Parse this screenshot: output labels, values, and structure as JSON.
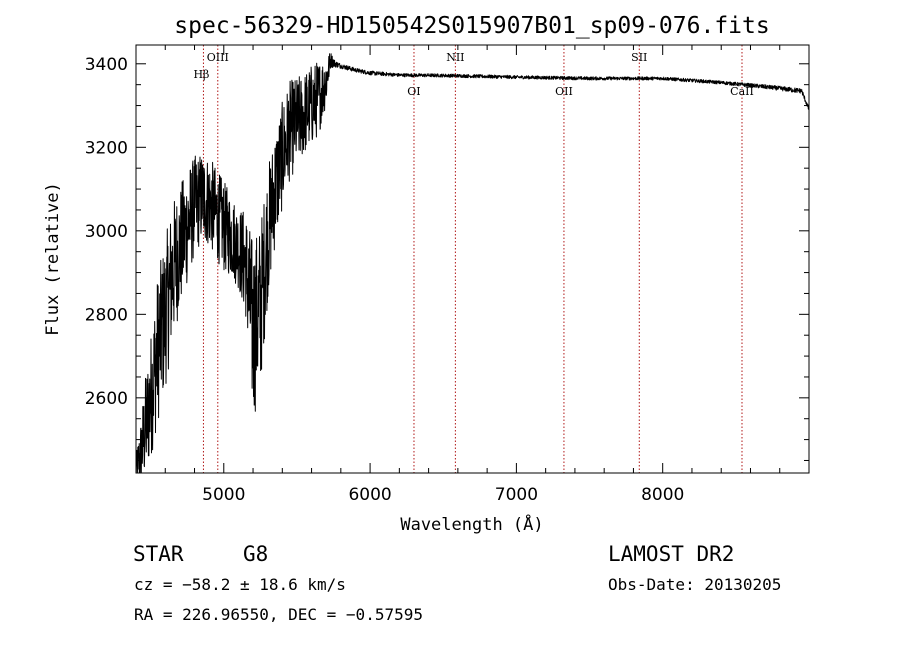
{
  "chart_data": {
    "type": "line",
    "title": "spec-56329-HD150542S015907B01_sp09-076.fits",
    "xlabel": "Wavelength (Å)",
    "ylabel": "Flux (relative)",
    "xlim": [
      4400,
      9000
    ],
    "ylim": [
      2420,
      3445
    ],
    "x_ticks": [
      5000,
      6000,
      7000,
      8000
    ],
    "y_ticks": [
      2600,
      2800,
      3000,
      3200,
      3400
    ],
    "grid": false,
    "spectral_lines": [
      {
        "label": "Hβ",
        "x": 4861,
        "label_pos": "top"
      },
      {
        "label": "OIII",
        "x": 4959,
        "label_pos": "top"
      },
      {
        "label": "OI",
        "x": 6300,
        "label_pos": "upper"
      },
      {
        "label": "NII",
        "x": 6583,
        "label_pos": "top"
      },
      {
        "label": "OII",
        "x": 7325,
        "label_pos": "upper"
      },
      {
        "label": "SII",
        "x": 7840,
        "label_pos": "top"
      },
      {
        "label": "CaII",
        "x": 8542,
        "label_pos": "upper"
      }
    ],
    "series": [
      {
        "anchors_x": [
          4400,
          4430,
          4460,
          4500,
          4550,
          4600,
          4650,
          4700,
          4750,
          4800,
          4850,
          4900,
          4950,
          5000,
          5050,
          5100,
          5150,
          5200,
          5250,
          5300,
          5350,
          5400,
          5450,
          5500,
          5550,
          5600,
          5650,
          5700,
          5730,
          5760,
          5800,
          5900,
          6000,
          6200,
          6500,
          7000,
          7500,
          8000,
          8400,
          8700,
          8950,
          9000
        ],
        "anchors_y": [
          2430,
          2460,
          2520,
          2600,
          2720,
          2800,
          2900,
          2960,
          3010,
          3060,
          3080,
          3070,
          3040,
          3010,
          2990,
          2960,
          2920,
          2760,
          2820,
          2990,
          3100,
          3180,
          3240,
          3260,
          3280,
          3300,
          3320,
          3360,
          3410,
          3400,
          3395,
          3385,
          3378,
          3373,
          3372,
          3368,
          3365,
          3365,
          3355,
          3345,
          3335,
          3290
        ],
        "noise_amp": [
          30,
          80,
          120,
          150,
          180,
          180,
          170,
          150,
          140,
          120,
          110,
          110,
          110,
          110,
          100,
          100,
          130,
          220,
          200,
          160,
          140,
          130,
          120,
          110,
          100,
          100,
          90,
          60,
          20,
          8,
          6,
          5,
          5,
          4,
          4,
          4,
          4,
          4,
          4,
          5,
          6,
          5
        ]
      }
    ]
  },
  "info": {
    "object_class": "STAR",
    "subclass": "G8",
    "survey": "LAMOST DR2",
    "redshift_text": "cz = −58.2 ± 18.6 km/s",
    "obs_date_text": "Obs-Date: 20130205",
    "coords_text": "RA = 226.96550, DEC =  −0.57595"
  }
}
